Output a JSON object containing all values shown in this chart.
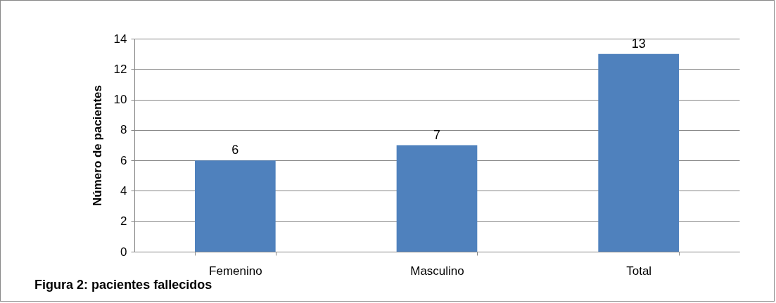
{
  "chart_data": {
    "type": "bar",
    "title": "Figura 2: pacientes fallecidos",
    "ylabel": "Número de pacientes",
    "categories": [
      "Femenino",
      "Masculino",
      "Total"
    ],
    "values": [
      6,
      7,
      13
    ],
    "color": "#4f81bd",
    "ylim": [
      0,
      14
    ],
    "yticks": [
      0,
      2,
      4,
      6,
      8,
      10,
      12,
      14
    ],
    "grid": "y",
    "data_labels": true
  }
}
